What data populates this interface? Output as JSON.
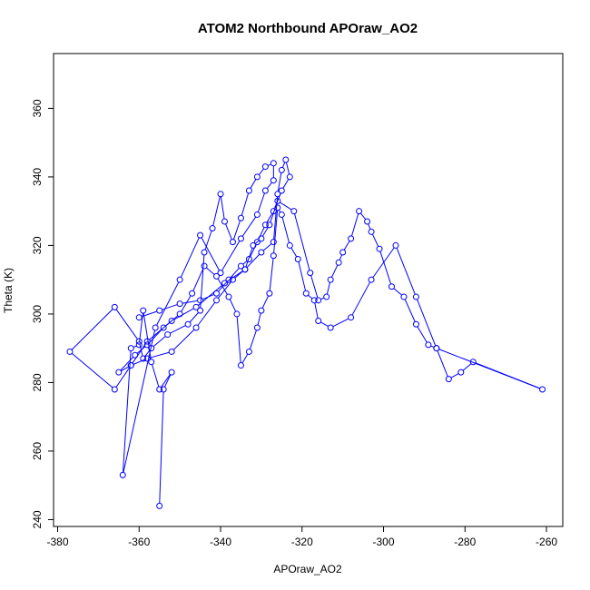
{
  "chart_data": {
    "type": "line",
    "title": "ATOM2 Northbound APOraw_AO2",
    "xlabel": "APOraw_AO2",
    "ylabel": "Theta (K)",
    "xlim": [
      -381,
      -256
    ],
    "ylim": [
      238,
      376
    ],
    "xticks": [
      -380,
      -360,
      -340,
      -320,
      -300,
      -280,
      -260
    ],
    "yticks": [
      240,
      260,
      280,
      300,
      320,
      340,
      360
    ],
    "grid": false,
    "legend": "none",
    "color": "#0000ff",
    "marker": "open-circle",
    "series": [
      {
        "x": [
          -355,
          -354,
          -352,
          -355,
          -357,
          -359,
          -360,
          -362,
          -364,
          -356,
          -350,
          -345,
          -340,
          -335,
          -331,
          -329,
          -327,
          -327,
          -329,
          -331,
          -333,
          -335,
          -337,
          -339,
          -340,
          -342,
          -344,
          -345,
          -348,
          -353,
          -357,
          -359,
          -360,
          -366,
          -377,
          -366,
          -362,
          -358,
          -352,
          -346,
          -341,
          -337,
          -334,
          -332,
          -330,
          -328,
          -326,
          -322,
          -318,
          -316,
          -314,
          -313,
          -311,
          -310,
          -308,
          -306,
          -304,
          -303,
          -301,
          -298,
          -295,
          -292,
          -289,
          -287,
          -284,
          -281,
          -278,
          -261,
          -287,
          -292,
          -297,
          -303,
          -308,
          -313,
          -316,
          -317,
          -319,
          -321,
          -323,
          -325,
          -326,
          -327,
          -328,
          -330,
          -331,
          -333,
          -335,
          -336,
          -338,
          -341,
          -344,
          -347,
          -350,
          -354,
          -358,
          -361,
          -365,
          -362,
          -358,
          -352,
          -346,
          -339,
          -334,
          -330,
          -327,
          -326,
          -325,
          -324,
          -323,
          -325,
          -327,
          -329,
          -331,
          -333,
          -335,
          -338,
          -341,
          -345,
          -350,
          -355,
          -360
        ],
        "y": [
          244,
          278,
          283,
          278,
          286,
          301,
          291,
          290,
          253,
          296,
          310,
          323,
          312,
          322,
          329,
          336,
          339,
          344,
          343,
          340,
          336,
          328,
          321,
          327,
          335,
          325,
          318,
          301,
          297,
          294,
          290,
          287,
          292,
          302,
          289,
          278,
          285,
          287,
          289,
          296,
          304,
          310,
          313,
          320,
          322,
          326,
          333,
          330,
          312,
          304,
          305,
          310,
          315,
          318,
          322,
          330,
          327,
          324,
          319,
          308,
          305,
          297,
          291,
          290,
          281,
          283,
          286,
          278,
          290,
          305,
          320,
          310,
          299,
          296,
          298,
          304,
          306,
          316,
          320,
          329,
          331,
          317,
          306,
          301,
          296,
          289,
          285,
          300,
          305,
          311,
          314,
          306,
          300,
          296,
          291,
          288,
          283,
          285,
          292,
          298,
          302,
          309,
          313,
          318,
          321,
          335,
          342,
          345,
          340,
          336,
          330,
          326,
          321,
          316,
          314,
          310,
          306,
          304,
          303,
          301,
          299
        ]
      }
    ]
  }
}
